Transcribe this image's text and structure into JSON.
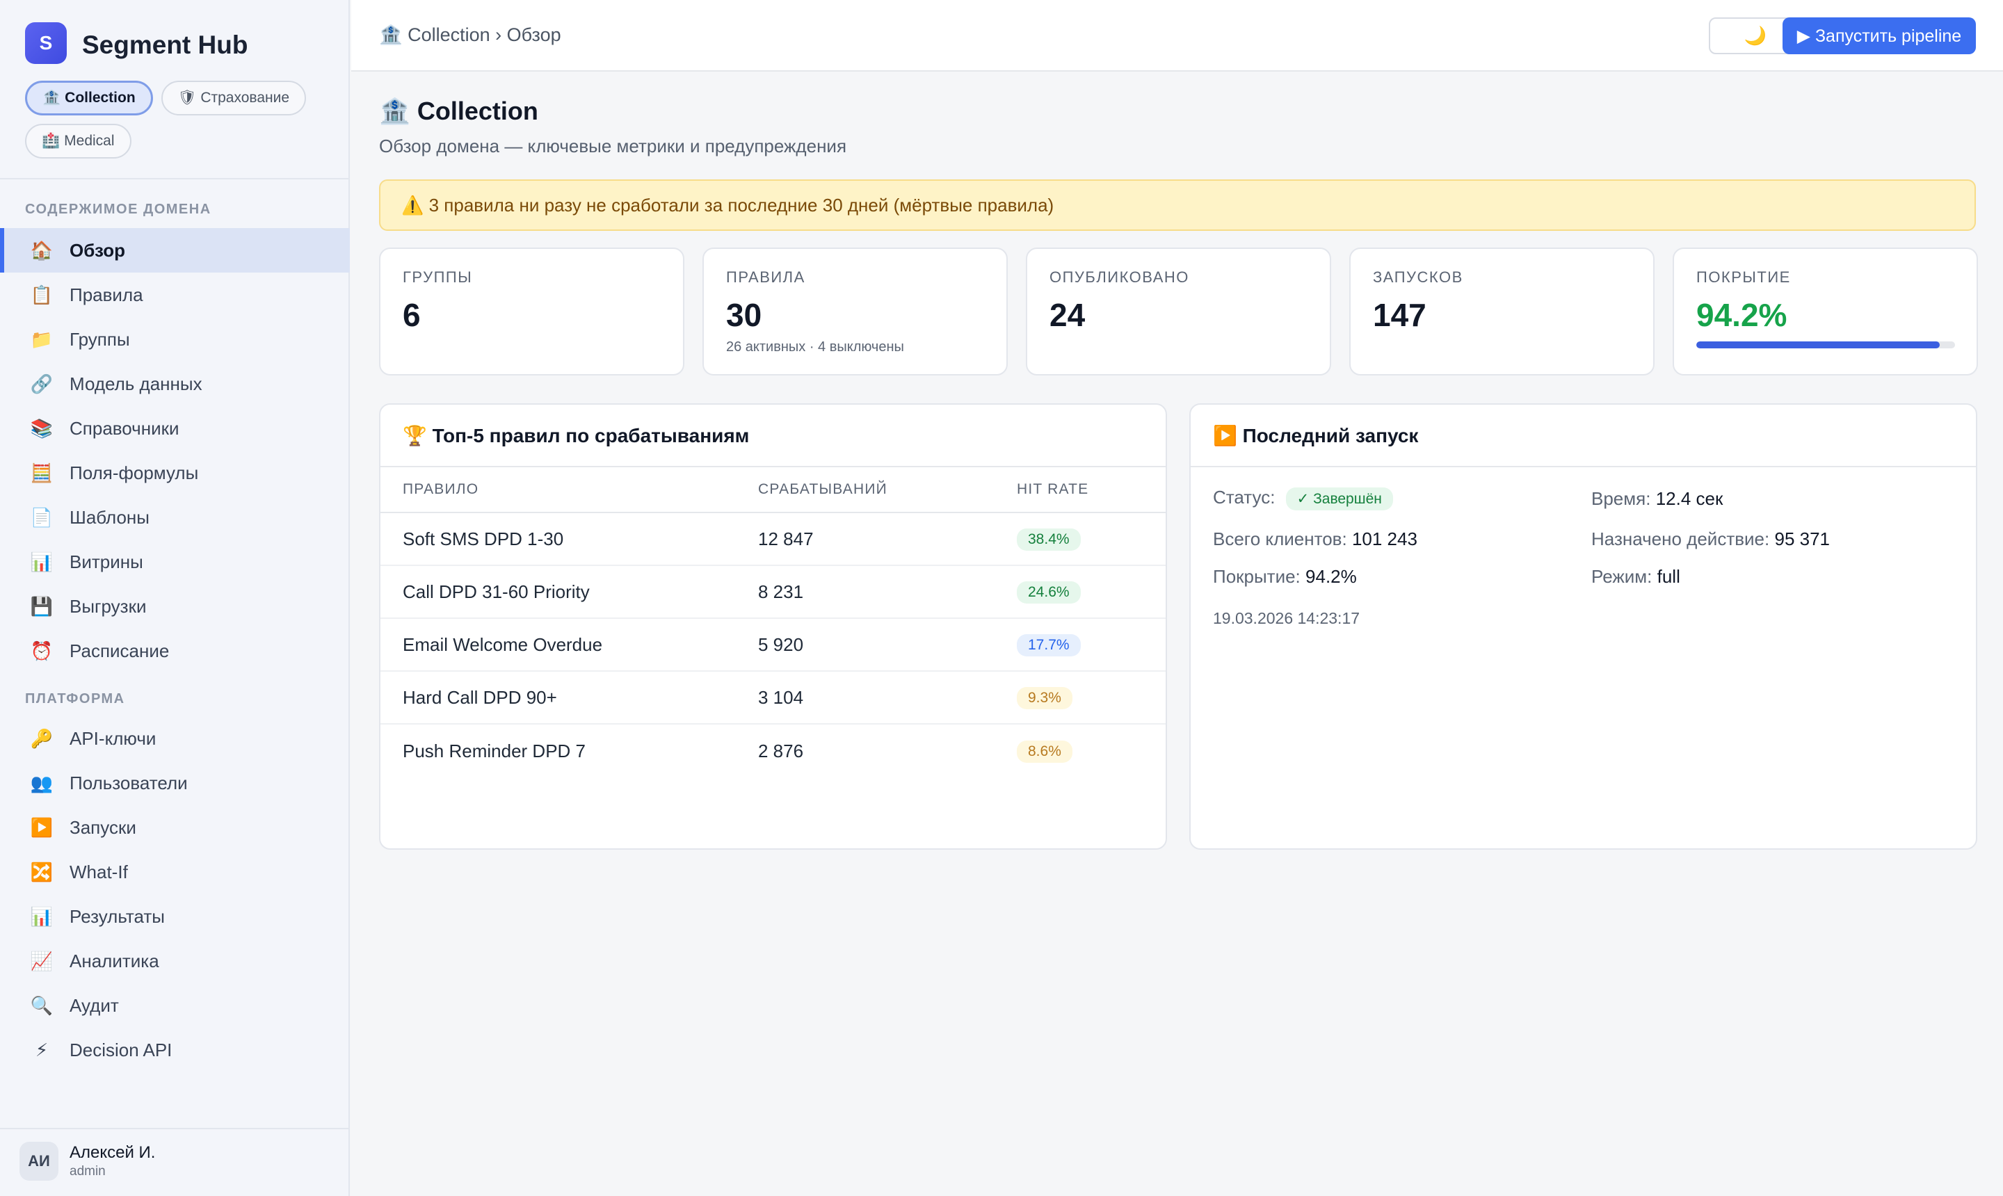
{
  "app": {
    "logo_letter": "S",
    "name": "Segment Hub"
  },
  "domains": [
    {
      "icon": "🏦",
      "label": "Collection",
      "active": true
    },
    {
      "icon": "🛡",
      "label": "Страхование",
      "active": false
    },
    {
      "icon": "🏥",
      "label": "Medical",
      "active": false
    }
  ],
  "sidebar": {
    "section_domain": "СОДЕРЖИМОЕ ДОМЕНА",
    "domain_items": [
      {
        "icon": "🏠",
        "label": "Обзор"
      },
      {
        "icon": "📋",
        "label": "Правила"
      },
      {
        "icon": "📁",
        "label": "Группы"
      },
      {
        "icon": "🔗",
        "label": "Модель данных"
      },
      {
        "icon": "📚",
        "label": "Справочники"
      },
      {
        "icon": "🧮",
        "label": "Поля-формулы"
      },
      {
        "icon": "📄",
        "label": "Шаблоны"
      },
      {
        "icon": "📊",
        "label": "Витрины"
      },
      {
        "icon": "💾",
        "label": "Выгрузки"
      },
      {
        "icon": "⏰",
        "label": "Расписание"
      }
    ],
    "section_platform": "ПЛАТФОРМА",
    "platform_items": [
      {
        "icon": "🔑",
        "label": "API-ключи"
      },
      {
        "icon": "👥",
        "label": "Пользователи"
      },
      {
        "icon": "▶️",
        "label": "Запуски"
      },
      {
        "icon": "🔀",
        "label": "What-If"
      },
      {
        "icon": "📊",
        "label": "Результаты"
      },
      {
        "icon": "📈",
        "label": "Аналитика"
      },
      {
        "icon": "🔍",
        "label": "Аудит"
      },
      {
        "icon": "⚡",
        "label": "Decision API"
      }
    ]
  },
  "user": {
    "initials": "АИ",
    "name": "Алексей И.",
    "role": "admin"
  },
  "topbar": {
    "breadcrumb": "🏦 Collection › Обзор",
    "theme_icon": "🌙",
    "run_label": "▶ Запустить pipeline"
  },
  "page": {
    "title": "🏦 Collection",
    "subtitle": "Обзор домена — ключевые метрики и предупреждения",
    "alert": "⚠️ 3 правила ни разу не сработали за последние 30 дней (мёртвые правила)"
  },
  "stats": {
    "groups": {
      "label": "ГРУППЫ",
      "value": "6"
    },
    "rules": {
      "label": "ПРАВИЛА",
      "value": "30",
      "sub": "26 активных · 4 выключены"
    },
    "published": {
      "label": "ОПУБЛИКОВАНО",
      "value": "24"
    },
    "runs": {
      "label": "ЗАПУСКОВ",
      "value": "147"
    },
    "coverage": {
      "label": "ПОКРЫТИЕ",
      "value": "94.2%",
      "fraction": 0.942
    }
  },
  "top_rules": {
    "title": "🏆 Топ-5 правил по срабатываниям",
    "columns": [
      "ПРАВИЛО",
      "СРАБАТЫВАНИЙ",
      "HIT RATE"
    ],
    "rows": [
      {
        "name": "Soft SMS DPD 1-30",
        "hits": "12 847",
        "rate": "38.4%",
        "tone": "green"
      },
      {
        "name": "Call DPD 31-60 Priority",
        "hits": "8 231",
        "rate": "24.6%",
        "tone": "green"
      },
      {
        "name": "Email Welcome Overdue",
        "hits": "5 920",
        "rate": "17.7%",
        "tone": "blue"
      },
      {
        "name": "Hard Call DPD 90+",
        "hits": "3 104",
        "rate": "9.3%",
        "tone": "yellow"
      },
      {
        "name": "Push Reminder DPD 7",
        "hits": "2 876",
        "rate": "8.6%",
        "tone": "yellow"
      }
    ]
  },
  "last_run": {
    "title": "▶️ Последний запуск",
    "status_label": "Статус:",
    "status_value": "✓ Завершён",
    "time_label": "Время:",
    "time_value": "12.4 сек",
    "clients_label": "Всего клиентов:",
    "clients_value": "101 243",
    "assigned_label": "Назначено действие:",
    "assigned_value": "95 371",
    "coverage_label": "Покрытие:",
    "coverage_value": "94.2%",
    "mode_label": "Режим:",
    "mode_value": "full",
    "timestamp": "19.03.2026 14:23:17"
  }
}
